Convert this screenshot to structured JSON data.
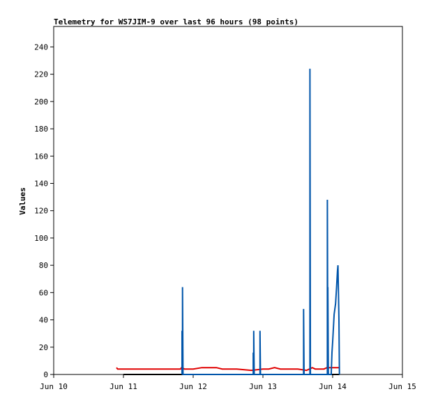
{
  "chart_data": {
    "type": "line",
    "title": "Telemetry for WS7JIM-9 over last 96 hours (98 points)",
    "ylabel": "Values",
    "xlabel": "",
    "x_ticks": [
      "Jun 10",
      "Jun 11",
      "Jun 12",
      "Jun 13",
      "Jun 14",
      "Jun 15"
    ],
    "y_ticks": [
      0,
      20,
      40,
      60,
      80,
      100,
      120,
      140,
      160,
      180,
      200,
      220,
      240
    ],
    "xlim": [
      "2024-06-10T00:00",
      "2024-06-15T00:00"
    ],
    "ylim": [
      0,
      255
    ],
    "grid": false,
    "legend": "none",
    "colors": {
      "red_series": "#e00000",
      "blue_series": "#0055aa",
      "black_series": "#000000",
      "frame": "#000000"
    },
    "series": [
      {
        "values_by_time": [
          [
            "06-10T21:36",
            5
          ],
          [
            "06-10T22:00",
            4
          ],
          [
            "06-11T12:00",
            4
          ],
          [
            "06-11T19:40",
            4
          ],
          [
            "06-11T20:00",
            5
          ],
          [
            "06-11T21:00",
            4
          ],
          [
            "06-11T22:00",
            4
          ],
          [
            "06-11T23:30",
            4
          ],
          [
            "06-12T00:00",
            4
          ],
          [
            "06-12T03:00",
            5
          ],
          [
            "06-12T08:00",
            5
          ],
          [
            "06-12T10:00",
            4
          ],
          [
            "06-12T15:00",
            4
          ],
          [
            "06-12T20:00",
            3
          ],
          [
            "06-13T00:00",
            4
          ],
          [
            "06-13T02:00",
            4
          ],
          [
            "06-13T04:00",
            5
          ],
          [
            "06-13T06:00",
            4
          ],
          [
            "06-13T12:00",
            4
          ],
          [
            "06-13T15:00",
            3
          ],
          [
            "06-13T16:00",
            4
          ],
          [
            "06-13T17:00",
            5
          ],
          [
            "06-13T18:00",
            4
          ],
          [
            "06-13T21:00",
            4
          ],
          [
            "06-13T22:00",
            5
          ],
          [
            "06-14T02:30",
            5
          ]
        ]
      },
      {
        "values_by_time": [
          [
            "06-11T20:10",
            0
          ],
          [
            "06-11T20:10",
            32
          ],
          [
            "06-11T20:20",
            0
          ],
          [
            "06-11T20:20",
            64
          ],
          [
            "06-11T20:30",
            0
          ],
          [
            "06-12T20:40",
            0
          ],
          [
            "06-12T20:40",
            16
          ],
          [
            "06-12T20:50",
            0
          ],
          [
            "06-12T20:50",
            32
          ],
          [
            "06-12T21:00",
            0
          ],
          [
            "06-12T23:00",
            0
          ],
          [
            "06-12T23:00",
            32
          ],
          [
            "06-12T23:10",
            0
          ],
          [
            "06-13T14:00",
            0
          ],
          [
            "06-13T14:00",
            48
          ],
          [
            "06-13T14:10",
            0
          ],
          [
            "06-13T16:10",
            0
          ],
          [
            "06-13T16:10",
            224
          ],
          [
            "06-13T16:20",
            0
          ],
          [
            "06-13T22:10",
            0
          ],
          [
            "06-13T22:10",
            128
          ],
          [
            "06-13T22:20",
            0
          ],
          [
            "06-13T22:20",
            64
          ],
          [
            "06-13T22:30",
            0
          ],
          [
            "06-13T23:30",
            0
          ],
          [
            "06-13T23:45",
            16
          ],
          [
            "06-14T00:00",
            24
          ],
          [
            "06-14T00:30",
            44
          ],
          [
            "06-14T01:00",
            52
          ],
          [
            "06-14T01:20",
            64
          ],
          [
            "06-14T01:40",
            76
          ],
          [
            "06-14T01:50",
            80
          ],
          [
            "06-14T02:00",
            60
          ],
          [
            "06-14T02:10",
            40
          ],
          [
            "06-14T02:20",
            0
          ]
        ]
      },
      {
        "values_by_time": [
          [
            "06-11T00:00",
            0
          ],
          [
            "06-14T02:20",
            0
          ]
        ]
      }
    ]
  }
}
